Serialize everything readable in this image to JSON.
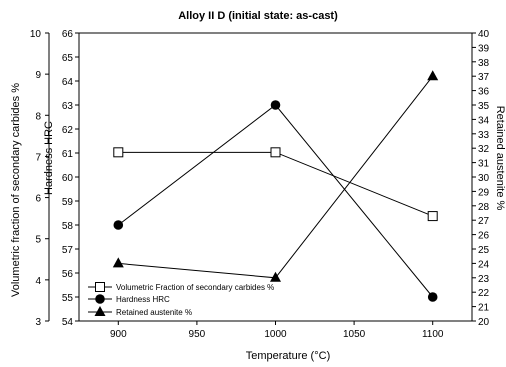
{
  "chart_data": {
    "type": "line",
    "title": "Alloy II D (initial state: as-cast)",
    "xlabel": "Temperature (°C)",
    "x_ticks": [
      900,
      950,
      1000,
      1050,
      1100
    ],
    "xlim": [
      875,
      1125
    ],
    "y_axes": [
      {
        "id": "carbides",
        "label": "Volumetric fraction of secondary carbides %",
        "range": [
          3,
          10
        ],
        "ticks": [
          3,
          4,
          5,
          6,
          7,
          8,
          9,
          10
        ]
      },
      {
        "id": "hardness",
        "label": "Hardness HRC",
        "range": [
          54,
          66
        ],
        "ticks": [
          54,
          55,
          56,
          57,
          58,
          59,
          60,
          61,
          62,
          63,
          64,
          65,
          66
        ]
      },
      {
        "id": "austenite",
        "label": "Retained austenite %",
        "range": [
          20,
          40
        ],
        "ticks": [
          20,
          21,
          22,
          23,
          24,
          25,
          26,
          27,
          28,
          29,
          30,
          31,
          32,
          33,
          34,
          35,
          36,
          37,
          38,
          39,
          40
        ]
      }
    ],
    "x": [
      900,
      1000,
      1100
    ],
    "series": [
      {
        "name": "Volumetric Fraction of secondary carbides %",
        "axis": "carbides",
        "marker": "open-square",
        "values": [
          7.1,
          7.1,
          5.55
        ]
      },
      {
        "name": "Hardness HRC",
        "axis": "hardness",
        "marker": "filled-circle",
        "values": [
          58,
          63,
          55
        ]
      },
      {
        "name": "Retained austenite %",
        "axis": "austenite",
        "marker": "filled-triangle",
        "values": [
          24,
          23,
          37
        ]
      }
    ],
    "legend_position": "bottom-left",
    "grid": false
  }
}
